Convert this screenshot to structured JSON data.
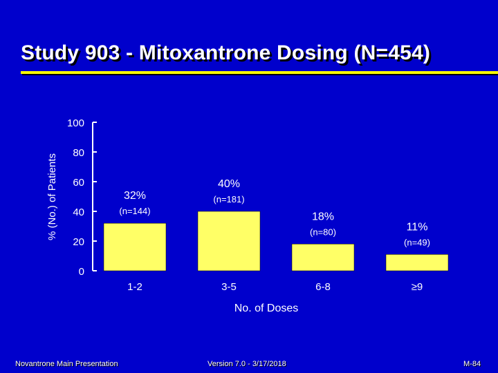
{
  "title": "Study 903 - Mitoxantrone Dosing (N=454)",
  "colors": {
    "background": "#0000cc",
    "bar": "#ffff66",
    "accent": "#ffff00",
    "text": "#ffffff",
    "shadow": "#000000"
  },
  "chart_data": {
    "type": "bar",
    "title": "Study 903 - Mitoxantrone Dosing (N=454)",
    "xlabel": "No. of Doses",
    "ylabel": "% (No.) of Patients",
    "categories": [
      "1-2",
      "3-5",
      "6-8",
      "≥9"
    ],
    "values": [
      32,
      40,
      18,
      11
    ],
    "value_labels": [
      "32%",
      "40%",
      "18%",
      "11%"
    ],
    "count_labels": [
      "(n=144)",
      "(n=181)",
      "(n=80)",
      "(n=49)"
    ],
    "ylim": [
      0,
      100
    ],
    "yticks": [
      0,
      20,
      40,
      60,
      80,
      100
    ],
    "grid": false,
    "legend": "none"
  },
  "footer": {
    "left": "Novantrone Main Presentation",
    "center": "Version 7.0 - 3/17/2018",
    "right": "M-84"
  }
}
